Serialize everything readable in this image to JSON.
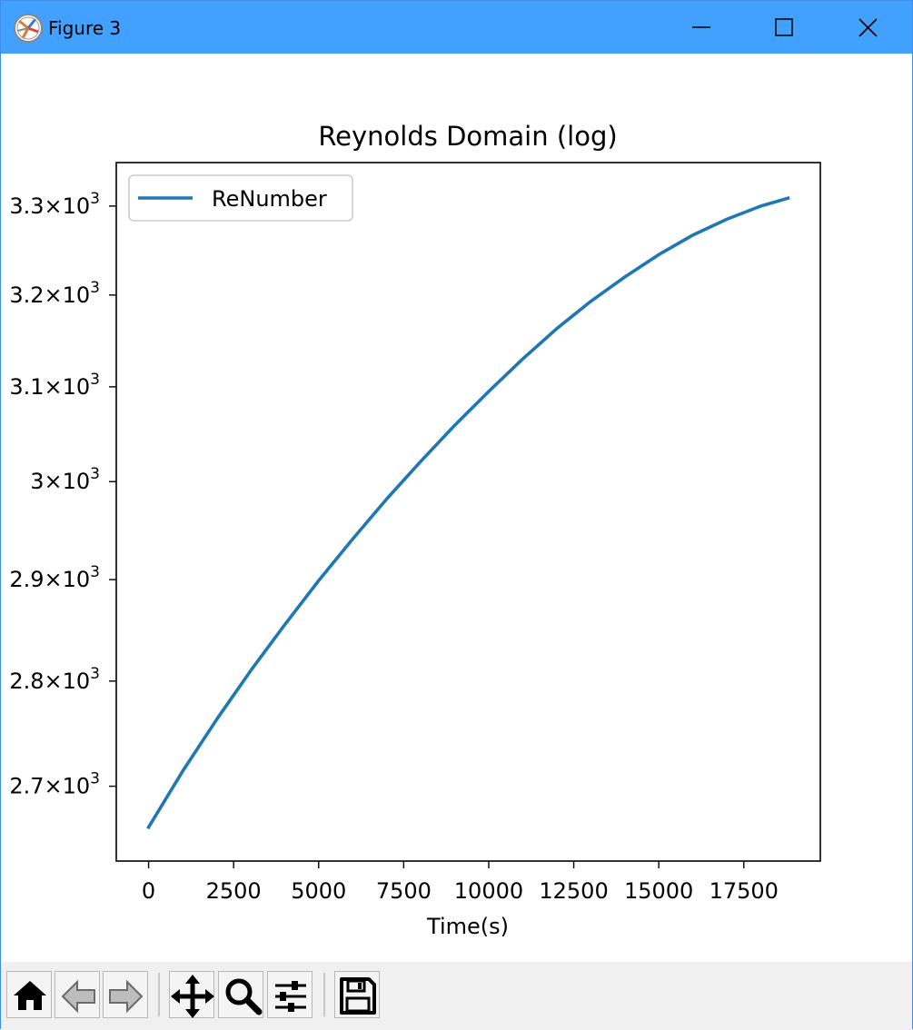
{
  "window": {
    "title": "Figure 3",
    "colors": {
      "titlebar": "#42a0fe",
      "toolbar": "#f0f0f0"
    }
  },
  "titlebar_buttons": [
    {
      "name": "minimize-button",
      "icon": "minimize-icon"
    },
    {
      "name": "maximize-button",
      "icon": "maximize-icon"
    },
    {
      "name": "close-button",
      "icon": "close-icon"
    }
  ],
  "toolbar": {
    "buttons": [
      {
        "name": "home-button",
        "icon": "home-icon"
      },
      {
        "name": "back-button",
        "icon": "back-arrow-icon"
      },
      {
        "name": "forward-button",
        "icon": "forward-arrow-icon"
      },
      {
        "name": "pan-button",
        "icon": "move-icon"
      },
      {
        "name": "zoom-button",
        "icon": "magnifier-icon"
      },
      {
        "name": "configure-subplots-button",
        "icon": "sliders-icon"
      },
      {
        "name": "save-button",
        "icon": "floppy-disk-icon"
      }
    ]
  },
  "chart_data": {
    "type": "line",
    "title": "Reynolds Domain (log)",
    "xlabel": "Time(s)",
    "ylabel": "",
    "y_scale": "log",
    "xlim": [
      -950,
      19750
    ],
    "ylim": [
      2631,
      3350
    ],
    "x_ticks": [
      0,
      2500,
      5000,
      7500,
      10000,
      12500,
      15000,
      17500
    ],
    "x_tick_labels": [
      "0",
      "2500",
      "5000",
      "7500",
      "10000",
      "12500",
      "15000",
      "17500"
    ],
    "y_ticks": [
      2700,
      2800,
      2900,
      3000,
      3100,
      3200,
      3300
    ],
    "y_tick_labels": [
      {
        "mantissa": "2.7",
        "base": "×10",
        "exp": "3"
      },
      {
        "mantissa": "2.8",
        "base": "×10",
        "exp": "3"
      },
      {
        "mantissa": "2.9",
        "base": "×10",
        "exp": "3"
      },
      {
        "mantissa": "3",
        "base": "×10",
        "exp": "3"
      },
      {
        "mantissa": "3.1",
        "base": "×10",
        "exp": "3"
      },
      {
        "mantissa": "3.2",
        "base": "×10",
        "exp": "3"
      },
      {
        "mantissa": "3.3",
        "base": "×10",
        "exp": "3"
      }
    ],
    "legend": {
      "position": "upper-left"
    },
    "series": [
      {
        "name": "ReNumber",
        "color": "#1f77b4",
        "x": [
          0,
          1000,
          2000,
          3000,
          4000,
          5000,
          6000,
          7000,
          8000,
          9000,
          10000,
          11000,
          12000,
          13000,
          14000,
          15000,
          16000,
          17000,
          18000,
          18800
        ],
        "y": [
          2662,
          2714,
          2763,
          2810,
          2855,
          2899,
          2941,
          2982,
          3021,
          3059,
          3095,
          3130,
          3163,
          3193,
          3220,
          3245,
          3267,
          3285,
          3300,
          3309
        ]
      }
    ]
  }
}
